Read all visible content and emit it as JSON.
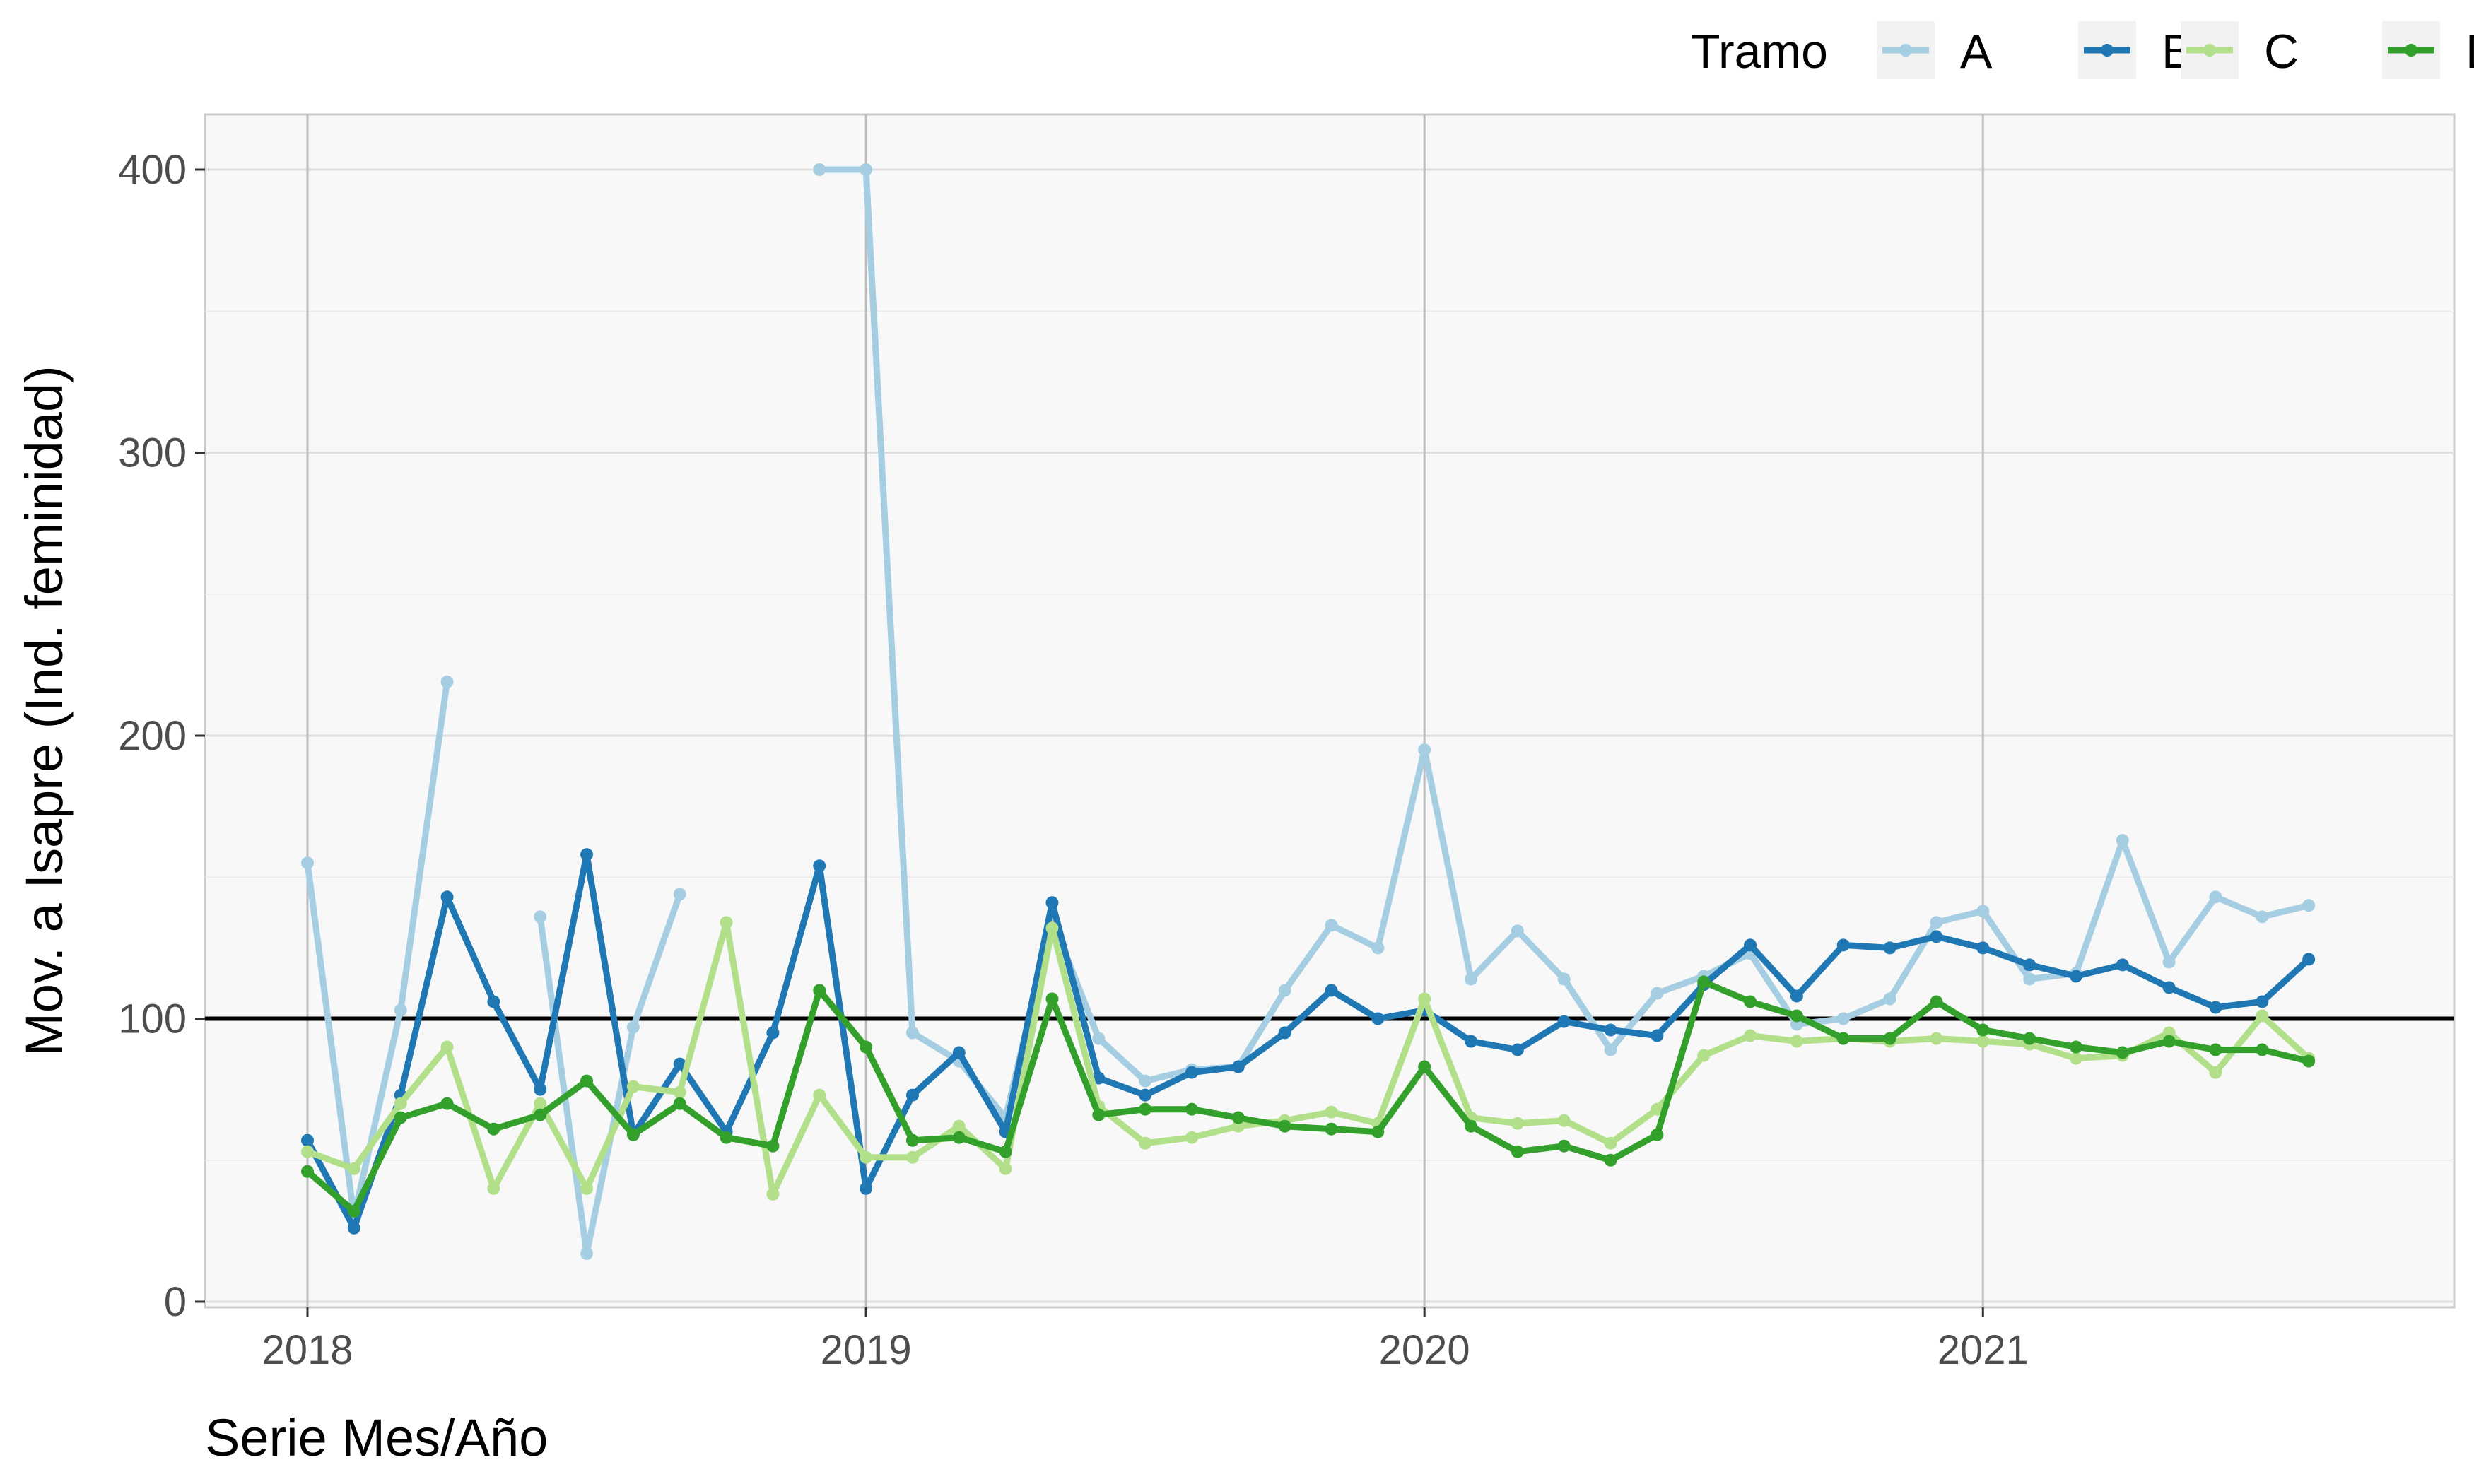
{
  "chart_data": {
    "type": "line",
    "xlabel": "Serie Mes/Año",
    "ylabel": "Mov. a Isapre (Ind. feminidad)",
    "x_ticks": [
      "2018",
      "2019",
      "2020",
      "2021"
    ],
    "y_ticks": [
      0,
      100,
      200,
      300,
      400
    ],
    "ylim": [
      0,
      420
    ],
    "xlim": [
      "2017-12",
      "2021-10"
    ],
    "x_unit": "month",
    "reference_line": {
      "y": 100,
      "color": "#000000"
    },
    "grid": true,
    "panel_background": "#F8F8F8",
    "legend": {
      "title": "Tramo",
      "position": "top-right"
    },
    "x": [
      "2018-01",
      "2018-02",
      "2018-03",
      "2018-04",
      "2018-05",
      "2018-06",
      "2018-07",
      "2018-08",
      "2018-09",
      "2018-10",
      "2018-11",
      "2018-12",
      "2019-01",
      "2019-02",
      "2019-03",
      "2019-04",
      "2019-05",
      "2019-06",
      "2019-07",
      "2019-08",
      "2019-09",
      "2019-10",
      "2019-11",
      "2019-12",
      "2020-01",
      "2020-02",
      "2020-03",
      "2020-04",
      "2020-05",
      "2020-06",
      "2020-07",
      "2020-08",
      "2020-09",
      "2020-10",
      "2020-11",
      "2020-12",
      "2021-01",
      "2021-02",
      "2021-03",
      "2021-04",
      "2021-05",
      "2021-06",
      "2021-07",
      "2021-08"
    ],
    "series": [
      {
        "name": "A",
        "color": "#A6CEE3",
        "values": [
          155,
          30,
          103,
          219,
          null,
          136,
          17,
          97,
          144,
          null,
          null,
          400,
          400,
          95,
          85,
          65,
          135,
          93,
          78,
          82,
          83,
          110,
          133,
          125,
          195,
          114,
          131,
          114,
          89,
          109,
          115,
          123,
          98,
          100,
          107,
          134,
          138,
          114,
          116,
          163,
          120,
          143,
          136,
          140
        ]
      },
      {
        "name": "B",
        "color": "#1F78B4",
        "values": [
          57,
          26,
          73,
          143,
          106,
          75,
          158,
          59,
          84,
          60,
          95,
          154,
          40,
          73,
          88,
          60,
          141,
          79,
          73,
          81,
          83,
          95,
          110,
          100,
          103,
          92,
          89,
          99,
          96,
          94,
          112,
          126,
          108,
          126,
          125,
          129,
          125,
          119,
          115,
          119,
          111,
          104,
          106,
          121
        ]
      },
      {
        "name": "C",
        "color": "#B2DF8A",
        "values": [
          53,
          47,
          70,
          90,
          40,
          70,
          40,
          76,
          74,
          134,
          38,
          73,
          51,
          51,
          62,
          47,
          132,
          69,
          56,
          58,
          62,
          64,
          67,
          63,
          107,
          65,
          63,
          64,
          56,
          68,
          87,
          94,
          92,
          93,
          92,
          93,
          92,
          91,
          86,
          87,
          95,
          81,
          101,
          86
        ]
      },
      {
        "name": "D",
        "color": "#33A02C",
        "values": [
          46,
          32,
          65,
          70,
          61,
          66,
          78,
          59,
          70,
          58,
          55,
          110,
          90,
          57,
          58,
          53,
          107,
          66,
          68,
          68,
          65,
          62,
          61,
          60,
          83,
          62,
          53,
          55,
          50,
          59,
          113,
          106,
          101,
          93,
          93,
          106,
          96,
          93,
          90,
          88,
          92,
          89,
          89,
          85
        ]
      }
    ]
  }
}
